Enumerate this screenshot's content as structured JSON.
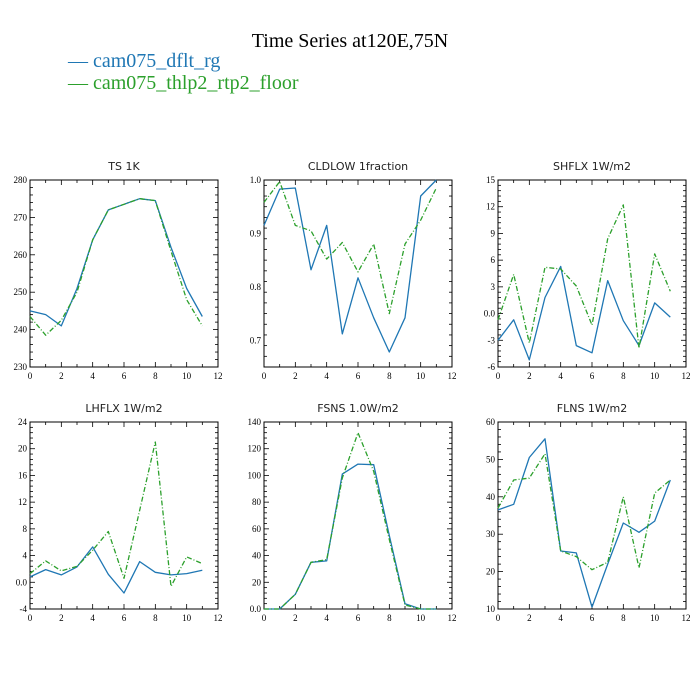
{
  "title": "Time Series at120E,75N",
  "legend": [
    {
      "label": "cam075_dflt_rg",
      "color": "#1f77b4"
    },
    {
      "label": "cam075_thlp2_rtp2_floor",
      "color": "#2ca02c"
    }
  ],
  "chart_data": [
    {
      "type": "line",
      "title": "TS   1K",
      "x": [
        0,
        1,
        2,
        3,
        4,
        5,
        6,
        7,
        8,
        9,
        10,
        11
      ],
      "xlim": [
        0,
        12
      ],
      "xticks": [
        0,
        2,
        4,
        6,
        8,
        10,
        12
      ],
      "ylim": [
        230,
        280
      ],
      "yticks": [
        230,
        240,
        250,
        260,
        270,
        280
      ],
      "series": [
        {
          "name": "cam075_dflt_rg",
          "values": [
            245,
            244,
            241,
            251,
            264,
            272,
            273.5,
            275,
            274.5,
            262,
            251,
            243.5
          ]
        },
        {
          "name": "cam075_thlp2_rtp2_floor",
          "values": [
            243.5,
            238.5,
            242.5,
            250,
            264,
            272,
            273.5,
            275,
            274.5,
            261,
            248,
            241
          ]
        }
      ]
    },
    {
      "type": "line",
      "title": "CLDLOW   1fraction",
      "x": [
        0,
        1,
        2,
        3,
        4,
        5,
        6,
        7,
        8,
        9,
        10,
        11
      ],
      "xlim": [
        0,
        12
      ],
      "xticks": [
        0,
        2,
        4,
        6,
        8,
        10,
        12
      ],
      "ylim": [
        0.65,
        1.0
      ],
      "yticks": [
        0.7,
        0.8,
        0.9,
        1.0
      ],
      "series": [
        {
          "name": "cam075_dflt_rg",
          "values": [
            0.915,
            0.983,
            0.985,
            0.832,
            0.915,
            0.712,
            0.817,
            0.742,
            0.678,
            0.742,
            0.97,
            1.0
          ]
        },
        {
          "name": "cam075_thlp2_rtp2_floor",
          "values": [
            0.958,
            0.997,
            0.915,
            0.905,
            0.852,
            0.883,
            0.828,
            0.88,
            0.75,
            0.88,
            0.925,
            0.985
          ]
        }
      ]
    },
    {
      "type": "line",
      "title": "SHFLX   1W/m2",
      "x": [
        0,
        1,
        2,
        3,
        4,
        5,
        6,
        7,
        8,
        9,
        10,
        11
      ],
      "xlim": [
        0,
        12
      ],
      "xticks": [
        0,
        2,
        4,
        6,
        8,
        10,
        12
      ],
      "ylim": [
        -6,
        15
      ],
      "yticks": [
        -6,
        -3,
        0,
        3,
        6,
        9,
        12,
        15
      ],
      "series": [
        {
          "name": "cam075_dflt_rg",
          "values": [
            -3.0,
            -0.7,
            -5.2,
            1.8,
            5.3,
            -3.6,
            -4.4,
            3.7,
            -0.8,
            -3.6,
            1.2,
            -0.4
          ]
        },
        {
          "name": "cam075_thlp2_rtp2_floor",
          "values": [
            -0.7,
            4.4,
            -3.3,
            5.2,
            5.0,
            3.1,
            -1.3,
            8.4,
            12.2,
            -3.9,
            6.7,
            2.5
          ]
        }
      ]
    },
    {
      "type": "line",
      "title": "LHFLX   1W/m2",
      "x": [
        0,
        1,
        2,
        3,
        4,
        5,
        6,
        7,
        8,
        9,
        10,
        11
      ],
      "xlim": [
        0,
        12
      ],
      "xticks": [
        0,
        2,
        4,
        6,
        8,
        10,
        12
      ],
      "ylim": [
        -4,
        24
      ],
      "yticks": [
        -4,
        0,
        4,
        8,
        12,
        16,
        20,
        24
      ],
      "series": [
        {
          "name": "cam075_dflt_rg",
          "values": [
            0.8,
            1.9,
            1.1,
            2.3,
            5.3,
            1.2,
            -1.6,
            3.1,
            1.5,
            1.1,
            1.3,
            1.8
          ]
        },
        {
          "name": "cam075_thlp2_rtp2_floor",
          "values": [
            1.3,
            3.2,
            1.7,
            2.4,
            4.8,
            7.6,
            0.6,
            10.8,
            21.0,
            -0.6,
            3.8,
            2.8
          ]
        }
      ]
    },
    {
      "type": "line",
      "title": "FSNS   1.0W/m2",
      "x": [
        0,
        1,
        2,
        3,
        4,
        5,
        6,
        7,
        8,
        9,
        10,
        11
      ],
      "xlim": [
        0,
        12
      ],
      "xticks": [
        0,
        2,
        4,
        6,
        8,
        10,
        12
      ],
      "ylim": [
        0,
        140
      ],
      "yticks": [
        0,
        20,
        40,
        60,
        80,
        100,
        120,
        140
      ],
      "series": [
        {
          "name": "cam075_dflt_rg",
          "values": [
            0,
            0,
            11,
            35,
            36,
            101,
            108.5,
            108,
            55,
            4,
            0,
            0
          ]
        },
        {
          "name": "cam075_thlp2_rtp2_floor",
          "values": [
            0,
            0,
            11,
            35,
            37,
            98,
            132,
            103,
            52,
            3,
            0,
            0
          ]
        }
      ]
    },
    {
      "type": "line",
      "title": "FLNS   1W/m2",
      "x": [
        0,
        1,
        2,
        3,
        4,
        5,
        6,
        7,
        8,
        9,
        10,
        11
      ],
      "xlim": [
        0,
        12
      ],
      "xticks": [
        0,
        2,
        4,
        6,
        8,
        10,
        12
      ],
      "ylim": [
        10,
        60
      ],
      "yticks": [
        10,
        20,
        30,
        40,
        50,
        60
      ],
      "series": [
        {
          "name": "cam075_dflt_rg",
          "values": [
            36.5,
            38,
            50.5,
            55.5,
            25.5,
            25,
            10.5,
            22,
            33,
            30.5,
            33.5,
            44.5
          ]
        },
        {
          "name": "cam075_thlp2_rtp2_floor",
          "values": [
            37,
            44.5,
            45,
            51.5,
            25.5,
            24,
            20.5,
            22.5,
            40,
            21,
            41,
            44.5
          ]
        }
      ]
    }
  ]
}
